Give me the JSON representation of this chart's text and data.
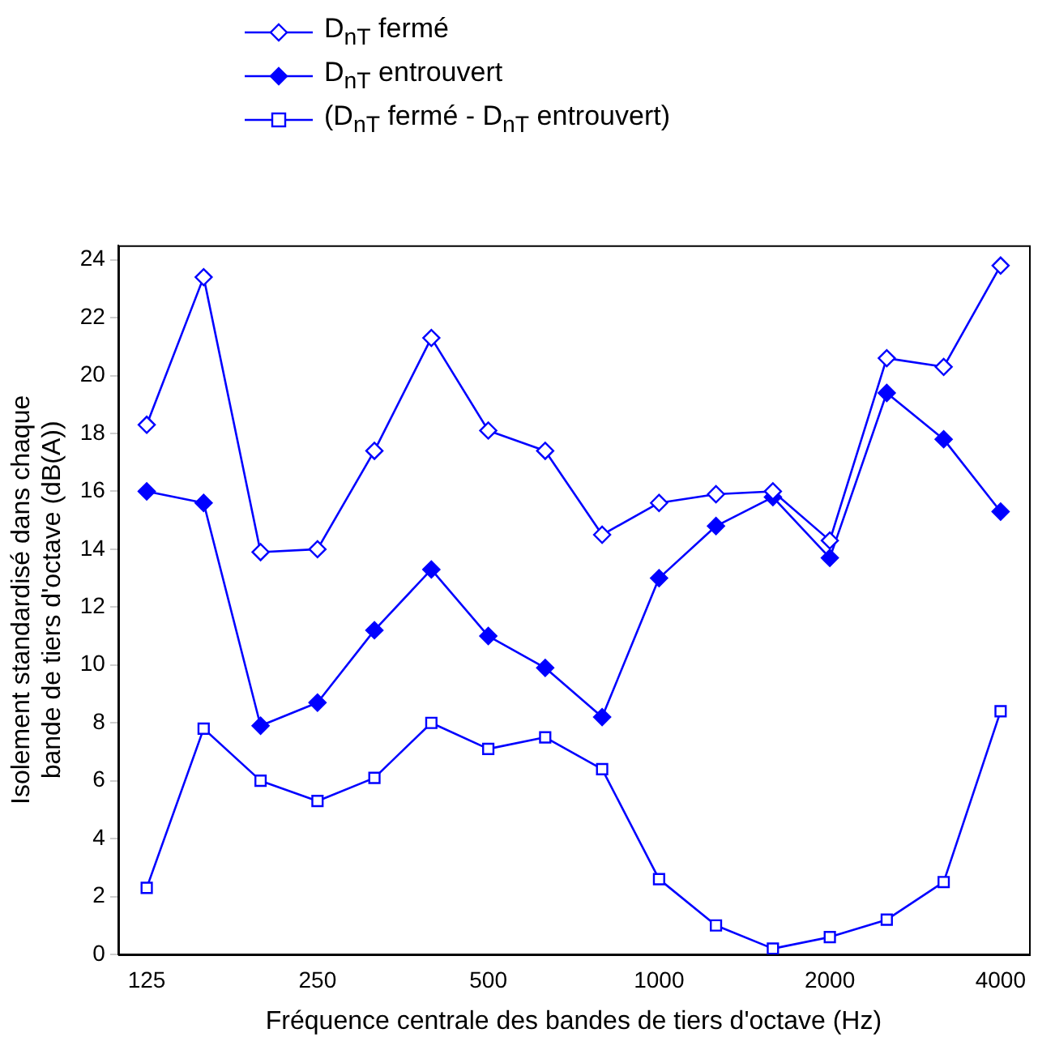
{
  "chart_data": {
    "type": "line",
    "xlabel": "Fréquence centrale des bandes de tiers d'octave (Hz)",
    "ylabel": "Isolement standardisé dans chaque bande de tiers d'octave (dB(A))",
    "categories": [
      "125",
      null,
      null,
      "250",
      null,
      null,
      "500",
      null,
      null,
      "1000",
      null,
      null,
      "2000",
      null,
      null,
      "4000"
    ],
    "ylim": [
      0,
      24.5
    ],
    "yticks": [
      0,
      2,
      4,
      6,
      8,
      10,
      12,
      14,
      16,
      18,
      20,
      22,
      24
    ],
    "grid": false,
    "legend": "top",
    "line_style": "solid",
    "series": [
      {
        "name": "D$_{nT}$ fermé",
        "color": "#0000ff",
        "marker": "diamond",
        "values": [
          18.3,
          23.4,
          13.9,
          14.0,
          17.4,
          21.3,
          18.1,
          17.4,
          14.5,
          15.6,
          15.9,
          16.0,
          14.3,
          20.6,
          20.3,
          23.8
        ]
      },
      {
        "name": "D$_{nT}$ entrouvert",
        "color": "#0000ff",
        "marker": "diamond",
        "values": [
          16.0,
          15.6,
          7.9,
          8.7,
          11.2,
          13.3,
          11.0,
          9.9,
          8.2,
          13.0,
          14.8,
          15.8,
          13.7,
          19.4,
          17.8,
          15.3
        ]
      },
      {
        "name": "(D$_{nT}$ fermé - D$_{nT}$ entrouvert)",
        "color": "#0000ff",
        "marker": "square",
        "values": [
          2.3,
          7.8,
          6.0,
          5.3,
          6.1,
          8.0,
          7.1,
          7.5,
          6.4,
          2.6,
          1.0,
          0.2,
          0.6,
          1.2,
          2.5,
          8.4
        ]
      }
    ]
  }
}
